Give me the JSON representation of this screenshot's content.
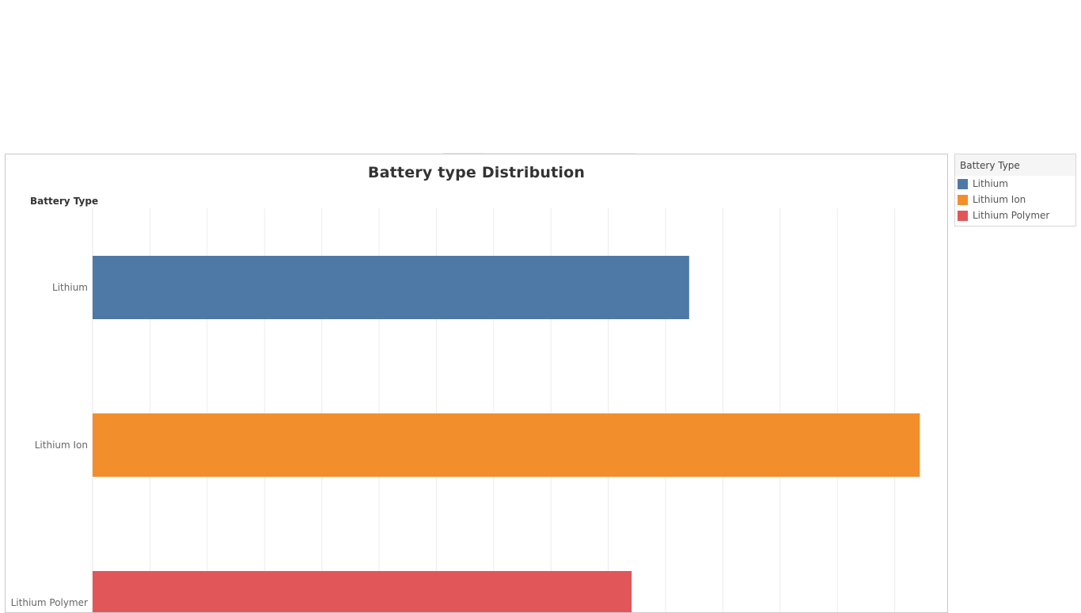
{
  "chart_data": {
    "type": "bar",
    "orientation": "horizontal",
    "title": "Battery type Distribution",
    "ylabel": "Battery Type",
    "xlabel": "",
    "categories": [
      "Lithium",
      "Lithium Ion",
      "Lithium Polymer"
    ],
    "values": [
      737,
      1022,
      666
    ],
    "colors": [
      "#4e79a7",
      "#f28e2b",
      "#e15759"
    ],
    "xlim": [
      0,
      1050
    ],
    "grid": true,
    "legend": {
      "title": "Battery Type",
      "position": "right",
      "items": [
        {
          "label": "Lithium",
          "color": "#4e79a7"
        },
        {
          "label": "Lithium Ion",
          "color": "#f28e2b"
        },
        {
          "label": "Lithium Polymer",
          "color": "#e15759"
        }
      ]
    }
  }
}
